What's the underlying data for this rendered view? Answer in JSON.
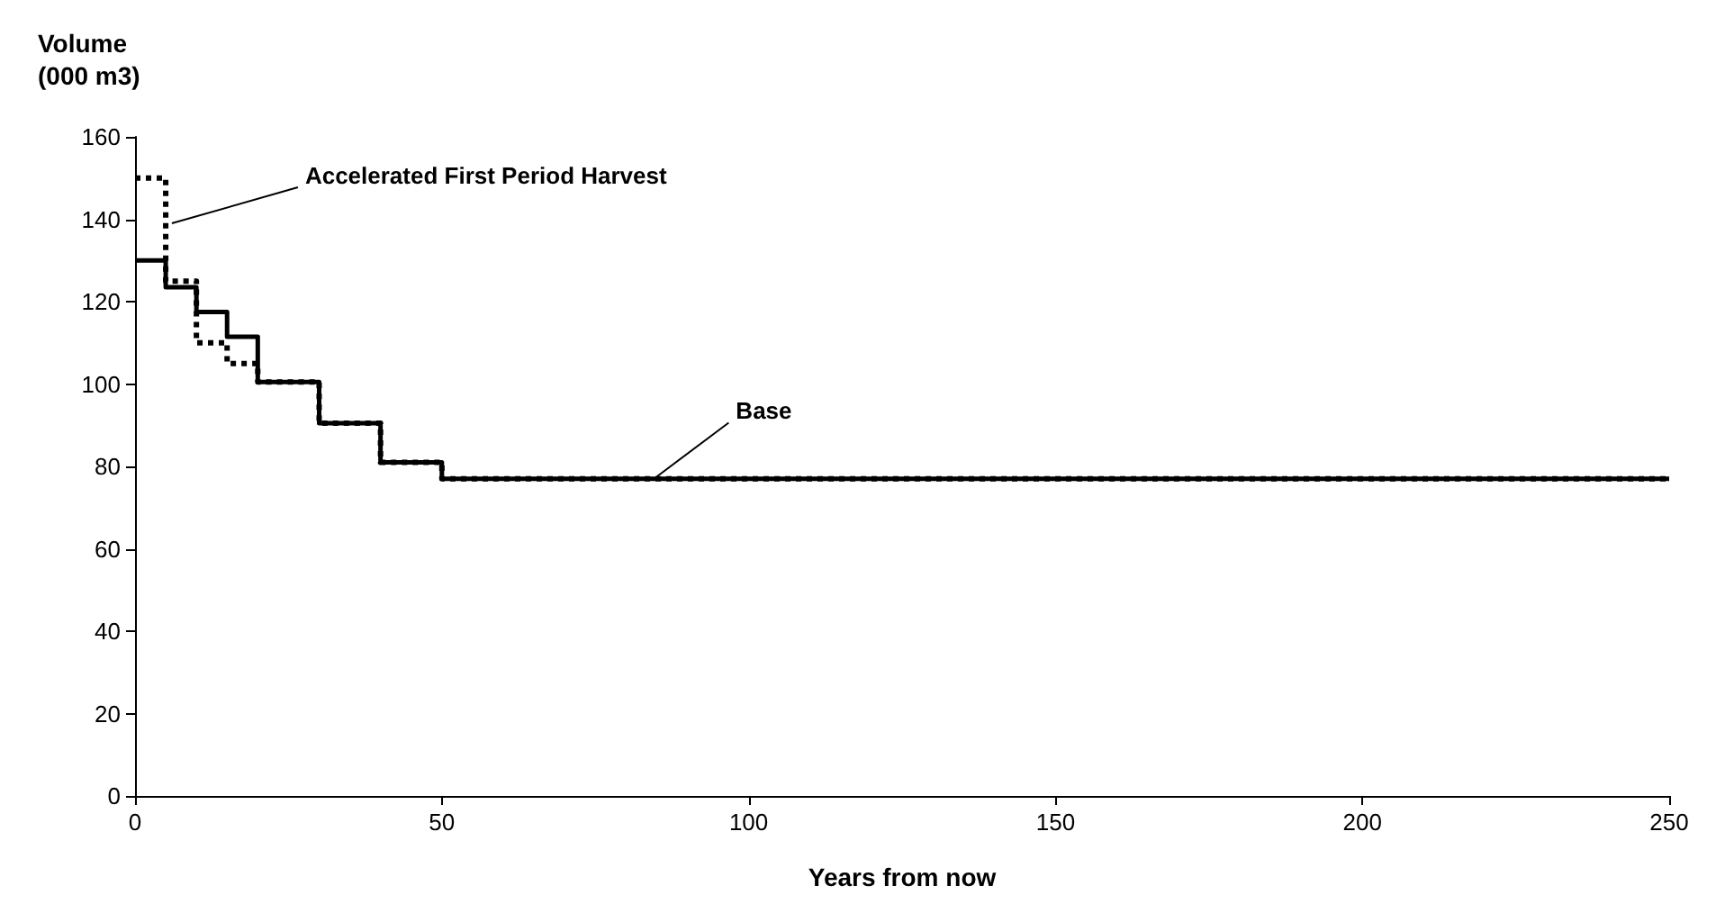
{
  "chart_data": {
    "type": "step",
    "xlabel": "Years from now",
    "ylabel": "Volume\n(000 m3)",
    "series": [
      {
        "color": "#000000",
        "line_style": "dashed",
        "x": [
          0,
          5,
          10,
          15,
          20,
          30,
          40,
          50,
          250
        ],
        "values": [
          150,
          125,
          110,
          105,
          100.5,
          90.5,
          81,
          77,
          77
        ]
      },
      {
        "color": "#000000",
        "line_style": "solid",
        "x": [
          0,
          5,
          10,
          15,
          20,
          30,
          40,
          50,
          250
        ],
        "values": [
          130,
          123.5,
          117.5,
          111.5,
          100.5,
          90.5,
          81,
          77,
          77
        ]
      }
    ],
    "xlim": [
      0,
      250
    ],
    "xticks": [
      0,
      50,
      100,
      150,
      200,
      250
    ],
    "ylim": [
      0,
      160
    ],
    "yticks": [
      0,
      20,
      40,
      60,
      80,
      100,
      120,
      140,
      160
    ],
    "grid": false,
    "marker": "none",
    "annotations": [
      {
        "text": "Accelerated First Period Harvest",
        "x": 6,
        "y": 139
      },
      {
        "text": "Base",
        "x": 85,
        "y": 77.5
      }
    ]
  }
}
